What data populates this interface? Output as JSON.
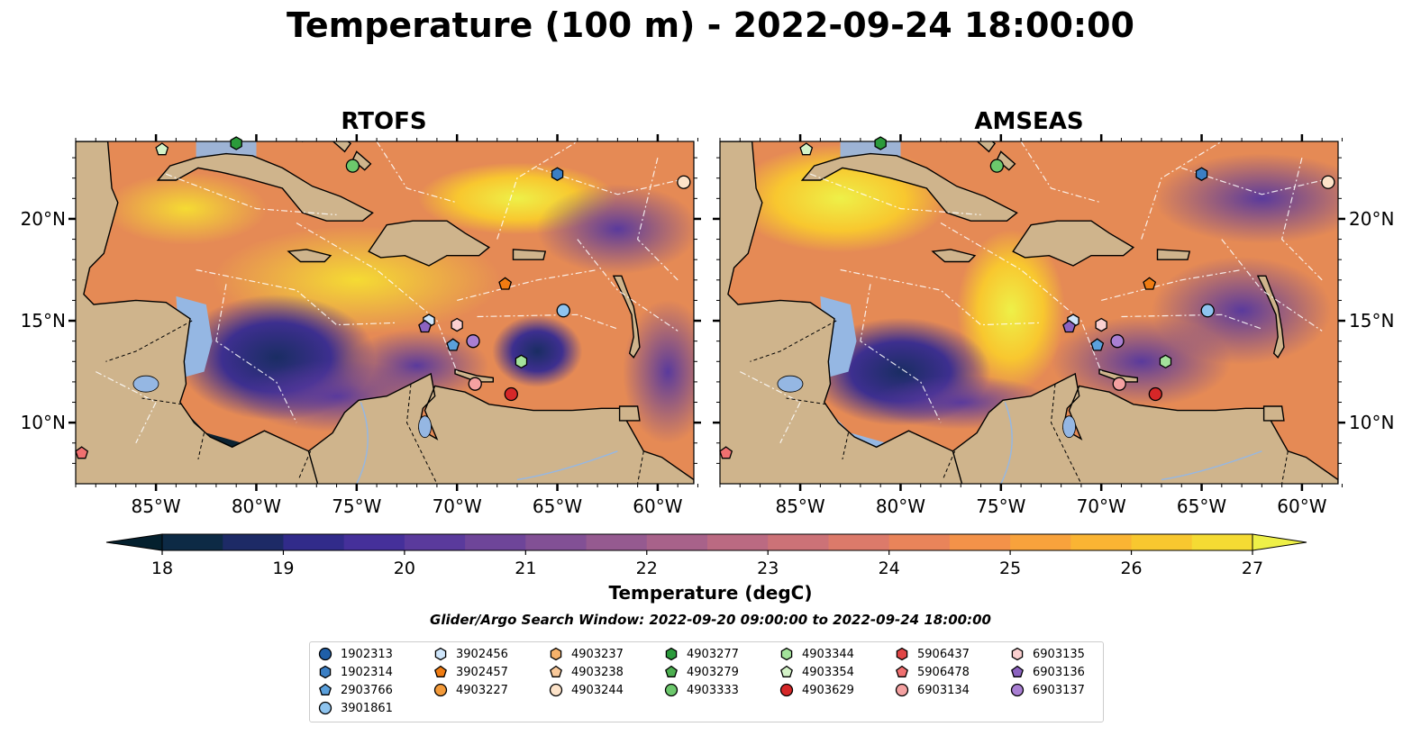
{
  "title": "Temperature (100 m) - 2022-09-24 18:00:00",
  "panels": [
    {
      "title": "RTOFS"
    },
    {
      "title": "AMSEAS"
    }
  ],
  "axes": {
    "lon_ticks": [
      "85°W",
      "80°W",
      "75°W",
      "70°W",
      "65°W",
      "60°W"
    ],
    "lat_ticks_left": [
      "20°N",
      "15°N",
      "10°N"
    ],
    "lat_ticks_right": [
      "20°N",
      "15°N",
      "10°N"
    ]
  },
  "colorbar": {
    "label": "Temperature (degC)",
    "ticks": [
      "18",
      "19",
      "20",
      "21",
      "22",
      "23",
      "24",
      "25",
      "26",
      "27"
    ],
    "colors": [
      "#04202e",
      "#0d2a45",
      "#1d2a66",
      "#312b8a",
      "#45309a",
      "#5a3a9c",
      "#6e4599",
      "#825095",
      "#955a90",
      "#a8628a",
      "#bb6a82",
      "#cc7277",
      "#dc7a6a",
      "#e9845a",
      "#f39249",
      "#f8a23c",
      "#fab433",
      "#f8c72f",
      "#f5db33",
      "#eef048"
    ]
  },
  "search_window": "Glider/Argo Search Window: 2022-09-20 09:00:00 to 2022-09-24 18:00:00",
  "legend": [
    {
      "label": "1902313",
      "marker": "circle",
      "color": "#1f5fa8"
    },
    {
      "label": "1902314",
      "marker": "hexagon",
      "color": "#3b7fc4"
    },
    {
      "label": "2903766",
      "marker": "pentagon",
      "color": "#5aa0dc"
    },
    {
      "label": "3901861",
      "marker": "circle",
      "color": "#8ec4ef"
    },
    {
      "label": "3902456",
      "marker": "hexagon",
      "color": "#cfe6fb"
    },
    {
      "label": "3902457",
      "marker": "pentagon",
      "color": "#f07c12"
    },
    {
      "label": "4903227",
      "marker": "circle",
      "color": "#f39a3a"
    },
    {
      "label": "4903237",
      "marker": "hexagon",
      "color": "#f6b26b"
    },
    {
      "label": "4903238",
      "marker": "pentagon",
      "color": "#f9c99a"
    },
    {
      "label": "4903244",
      "marker": "circle",
      "color": "#fde3c9"
    },
    {
      "label": "4903277",
      "marker": "hexagon",
      "color": "#2b9a3b"
    },
    {
      "label": "4903279",
      "marker": "pentagon",
      "color": "#4caf50"
    },
    {
      "label": "4903333",
      "marker": "circle",
      "color": "#6cc86c"
    },
    {
      "label": "4903344",
      "marker": "hexagon",
      "color": "#a3e29b"
    },
    {
      "label": "4903354",
      "marker": "pentagon",
      "color": "#d4f3c8"
    },
    {
      "label": "4903629",
      "marker": "circle",
      "color": "#d62728"
    },
    {
      "label": "5906437",
      "marker": "hexagon",
      "color": "#e04545"
    },
    {
      "label": "5906478",
      "marker": "pentagon",
      "color": "#f07070"
    },
    {
      "label": "6903134",
      "marker": "circle",
      "color": "#f4a1a1"
    },
    {
      "label": "6903135",
      "marker": "hexagon",
      "color": "#fbd0d0"
    },
    {
      "label": "6903136",
      "marker": "pentagon",
      "color": "#8c63c0"
    },
    {
      "label": "6903137",
      "marker": "circle",
      "color": "#a97fd3"
    }
  ],
  "floats": [
    {
      "label": "1902314",
      "lon": -65.0,
      "lat": 22.2
    },
    {
      "label": "2903766",
      "lon": -70.2,
      "lat": 13.8
    },
    {
      "label": "3901861",
      "lon": -64.7,
      "lat": 15.5
    },
    {
      "label": "3902456",
      "lon": -71.4,
      "lat": 15.0
    },
    {
      "label": "3902457",
      "lon": -67.6,
      "lat": 16.8
    },
    {
      "label": "4903244",
      "lon": -58.7,
      "lat": 21.8
    },
    {
      "label": "4903277",
      "lon": -81.0,
      "lat": 23.8
    },
    {
      "label": "4903333",
      "lon": -75.2,
      "lat": 22.6
    },
    {
      "label": "4903344",
      "lon": -66.8,
      "lat": 13.0
    },
    {
      "label": "4903354",
      "lon": -84.7,
      "lat": 23.4
    },
    {
      "label": "4903629",
      "lon": -67.3,
      "lat": 11.4
    },
    {
      "label": "5906478",
      "lon": -88.7,
      "lat": 8.5
    },
    {
      "label": "6903134",
      "lon": -69.1,
      "lat": 11.9
    },
    {
      "label": "6903135",
      "lon": -70.0,
      "lat": 14.8
    },
    {
      "label": "6903136",
      "lon": -71.6,
      "lat": 14.7
    },
    {
      "label": "6903137",
      "lon": -69.2,
      "lat": 14.0
    }
  ]
}
